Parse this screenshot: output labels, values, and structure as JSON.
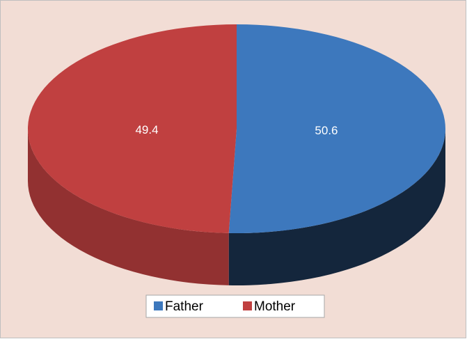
{
  "chart_data": {
    "type": "pie",
    "categories": [
      "Father",
      "Mother"
    ],
    "values": [
      50.6,
      49.4
    ],
    "colors": [
      "#3d78bd",
      "#c04040"
    ],
    "legend": "bottom"
  }
}
